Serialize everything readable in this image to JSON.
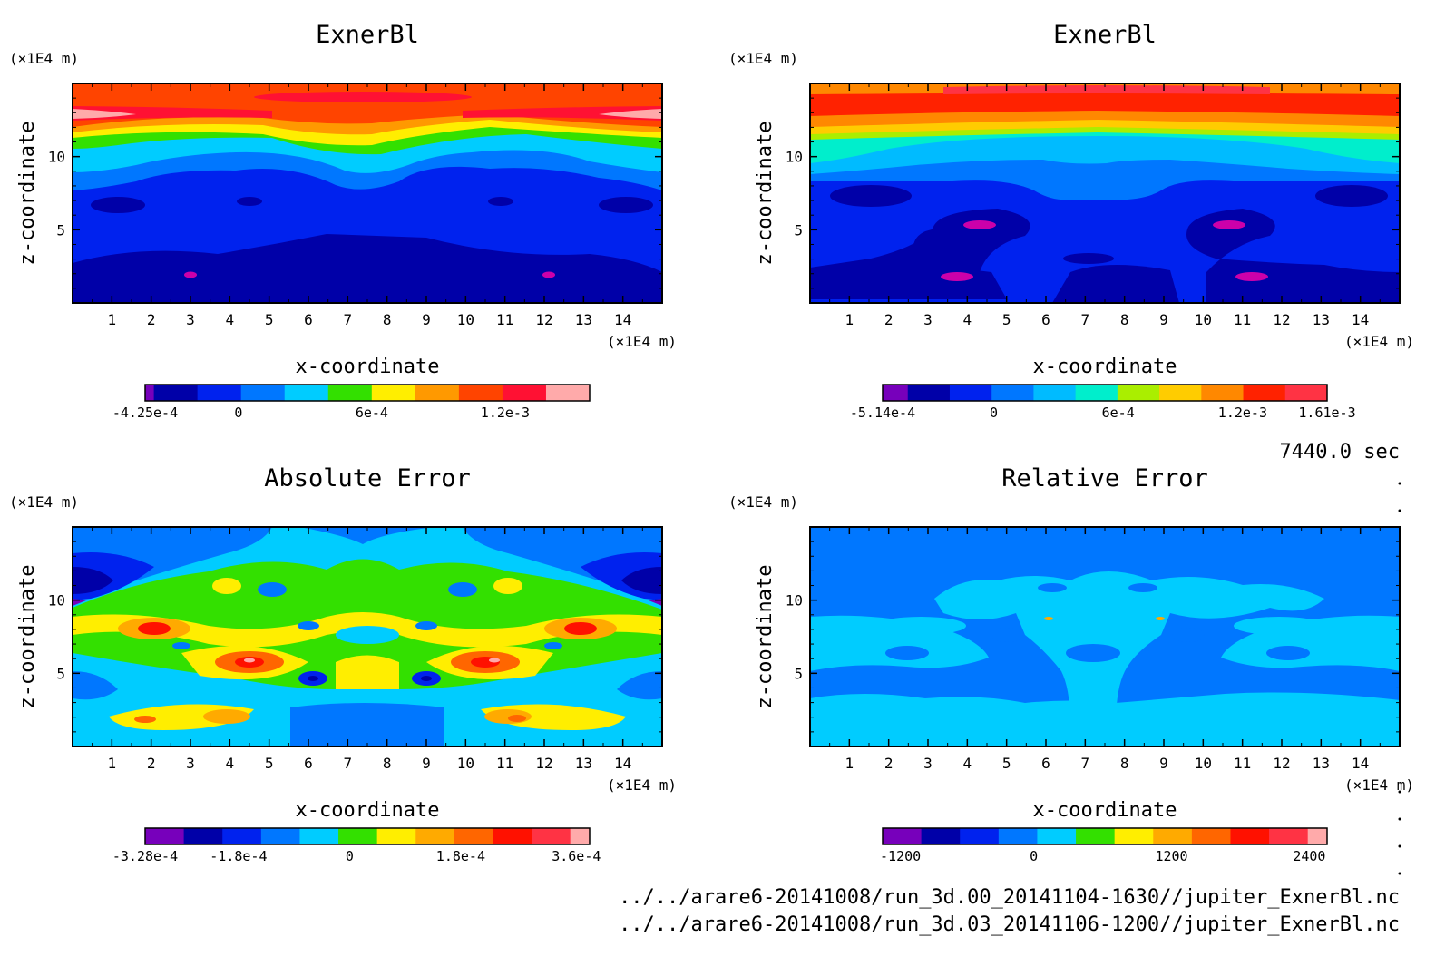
{
  "time_label": "7440.0 sec",
  "file_paths": [
    "../../arare6-20141008/run_3d.00_20141104-1630//jupiter_ExnerBl.nc",
    "../../arare6-20141008/run_3d.03_20141106-1200//jupiter_ExnerBl.nc"
  ],
  "chart_data": [
    {
      "type": "heatmap",
      "title": "ExnerBl",
      "xlabel": "x-coordinate",
      "ylabel": "z-coordinate",
      "x_unit": "(×1E4 m)",
      "y_unit": "(×1E4 m)",
      "xlim": [
        0,
        15
      ],
      "ylim": [
        0,
        15
      ],
      "x_ticks": [
        1,
        2,
        3,
        4,
        5,
        6,
        7,
        8,
        9,
        10,
        11,
        12,
        13,
        14
      ],
      "y_ticks": [
        5,
        10
      ],
      "colorbar": {
        "colors": [
          "#7700bb",
          "#0000a8",
          "#0022ee",
          "#0077ff",
          "#00ccff",
          "#33e000",
          "#ffee00",
          "#ff9900",
          "#ff4400",
          "#ff1133",
          "#ffaaaa"
        ],
        "weights": [
          0.2,
          1,
          1,
          1,
          1,
          1,
          1,
          1,
          1,
          1,
          1
        ],
        "labels": [
          {
            "text": "-4.25e-4",
            "pos": 0.0
          },
          {
            "text": "0",
            "pos": 0.21
          },
          {
            "text": "6e-4",
            "pos": 0.51
          },
          {
            "text": "1.2e-3",
            "pos": 0.81
          }
        ]
      }
    },
    {
      "type": "heatmap",
      "title": "ExnerBl",
      "xlabel": "x-coordinate",
      "ylabel": "z-coordinate",
      "x_unit": "(×1E4 m)",
      "y_unit": "(×1E4 m)",
      "xlim": [
        0,
        15
      ],
      "ylim": [
        0,
        15
      ],
      "x_ticks": [
        1,
        2,
        3,
        4,
        5,
        6,
        7,
        8,
        9,
        10,
        11,
        12,
        13,
        14
      ],
      "y_ticks": [
        5,
        10
      ],
      "colorbar": {
        "colors": [
          "#7700bb",
          "#0000a8",
          "#0022ee",
          "#0077ff",
          "#00bbff",
          "#00eecc",
          "#aaee00",
          "#ffcc00",
          "#ff8800",
          "#ff2200",
          "#ff3344"
        ],
        "weights": [
          0.6,
          1,
          1,
          1,
          1,
          1,
          1,
          1,
          1,
          1,
          1
        ],
        "labels": [
          {
            "text": "-5.14e-4",
            "pos": 0.0
          },
          {
            "text": "0",
            "pos": 0.25
          },
          {
            "text": "6e-4",
            "pos": 0.53
          },
          {
            "text": "1.2e-3",
            "pos": 0.81
          },
          {
            "text": "1.61e-3",
            "pos": 1.0
          }
        ]
      }
    },
    {
      "type": "heatmap",
      "title": "Absolute Error",
      "xlabel": "x-coordinate",
      "ylabel": "z-coordinate",
      "x_unit": "(×1E4 m)",
      "y_unit": "(×1E4 m)",
      "xlim": [
        0,
        15
      ],
      "ylim": [
        0,
        15
      ],
      "x_ticks": [
        1,
        2,
        3,
        4,
        5,
        6,
        7,
        8,
        9,
        10,
        11,
        12,
        13,
        14
      ],
      "y_ticks": [
        5,
        10
      ],
      "colorbar": {
        "colors": [
          "#7700bb",
          "#0000a8",
          "#0022ee",
          "#0077ff",
          "#00ccff",
          "#33e000",
          "#ffee00",
          "#ffaa00",
          "#ff6600",
          "#ff1100",
          "#ff3344",
          "#ffaaaa"
        ],
        "weights": [
          1,
          1,
          1,
          1,
          1,
          1,
          1,
          1,
          1,
          1,
          1,
          0.5
        ],
        "labels": [
          {
            "text": "-3.28e-4",
            "pos": 0.0
          },
          {
            "text": "-1.8e-4",
            "pos": 0.21
          },
          {
            "text": "0",
            "pos": 0.46
          },
          {
            "text": "1.8e-4",
            "pos": 0.71
          },
          {
            "text": "3.6e-4",
            "pos": 0.97
          }
        ]
      }
    },
    {
      "type": "heatmap",
      "title": "Relative Error",
      "xlabel": "x-coordinate",
      "ylabel": "z-coordinate",
      "x_unit": "(×1E4 m)",
      "y_unit": "(×1E4 m)",
      "xlim": [
        0,
        15
      ],
      "ylim": [
        0,
        15
      ],
      "x_ticks": [
        1,
        2,
        3,
        4,
        5,
        6,
        7,
        8,
        9,
        10,
        11,
        12,
        13,
        14
      ],
      "y_ticks": [
        5,
        10
      ],
      "colorbar": {
        "colors": [
          "#7700bb",
          "#0000a8",
          "#0022ee",
          "#0077ff",
          "#00ccff",
          "#33e000",
          "#ffee00",
          "#ffaa00",
          "#ff6600",
          "#ff1100",
          "#ff3344",
          "#ffaaaa"
        ],
        "weights": [
          1,
          1,
          1,
          1,
          1,
          1,
          1,
          1,
          1,
          1,
          1,
          0.5
        ],
        "labels": [
          {
            "text": "-1200",
            "pos": 0.04
          },
          {
            "text": "0",
            "pos": 0.34
          },
          {
            "text": "1200",
            "pos": 0.65
          },
          {
            "text": "2400",
            "pos": 0.96
          }
        ]
      }
    }
  ]
}
